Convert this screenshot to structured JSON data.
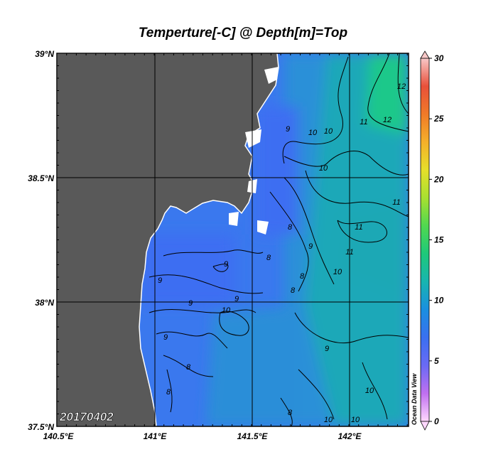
{
  "title": "Temperture[-C] @ Depth[m]=Top",
  "date_stamp": "20170402",
  "watermark": "Ocean Data View",
  "lat_labels": [
    "39°N",
    "38.5°N",
    "38°N",
    "37.5°N"
  ],
  "lon_labels": [
    "140.5°E",
    "141°E",
    "141.5°E",
    "142°E"
  ],
  "colorbar": {
    "min": 0,
    "max": 30,
    "ticks": [
      "30",
      "25",
      "20",
      "15",
      "10",
      "5",
      "0"
    ],
    "colors": [
      "#ffd8ff",
      "#c070f0",
      "#6a6af5",
      "#3a70f0",
      "#1a8fe0",
      "#18b5b0",
      "#1ec97a",
      "#50d850",
      "#a8e030",
      "#e6df2a",
      "#f5b02a",
      "#f07a28",
      "#e8503a",
      "#f8c8c8"
    ]
  },
  "map": {
    "land_color": "#595959",
    "extent": {
      "lon": [
        140.5,
        142.3
      ],
      "lat": [
        37.5,
        39.0
      ]
    },
    "contour_labels": [
      "9",
      "10",
      "10",
      "11",
      "12",
      "12",
      "11",
      "10",
      "9",
      "8",
      "9",
      "8",
      "9",
      "11",
      "11",
      "10",
      "8",
      "8",
      "9",
      "9",
      "10",
      "9",
      "8",
      "8",
      "8",
      "9",
      "10",
      "10",
      "10"
    ]
  }
}
